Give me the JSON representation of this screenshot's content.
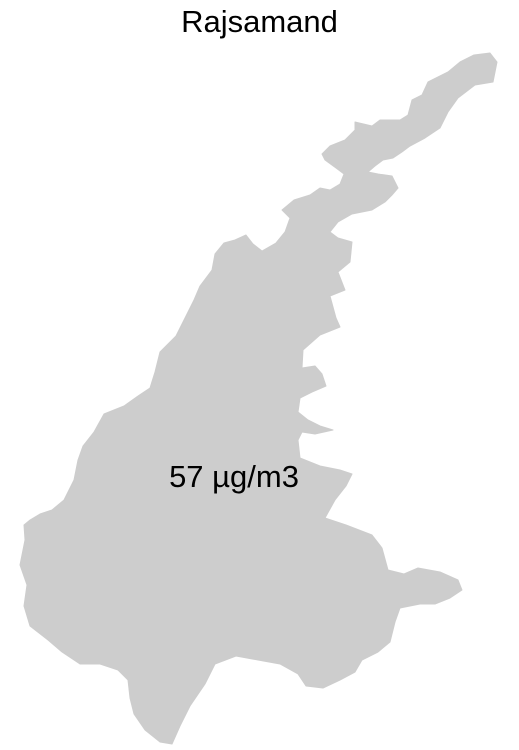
{
  "map": {
    "title": "Rajsamand",
    "region_name": "Rajsamand",
    "value_label": "57 µg/m3",
    "value": 57,
    "unit": "µg/m3",
    "region_fill": "#cdcdcd",
    "background": "#ffffff"
  }
}
